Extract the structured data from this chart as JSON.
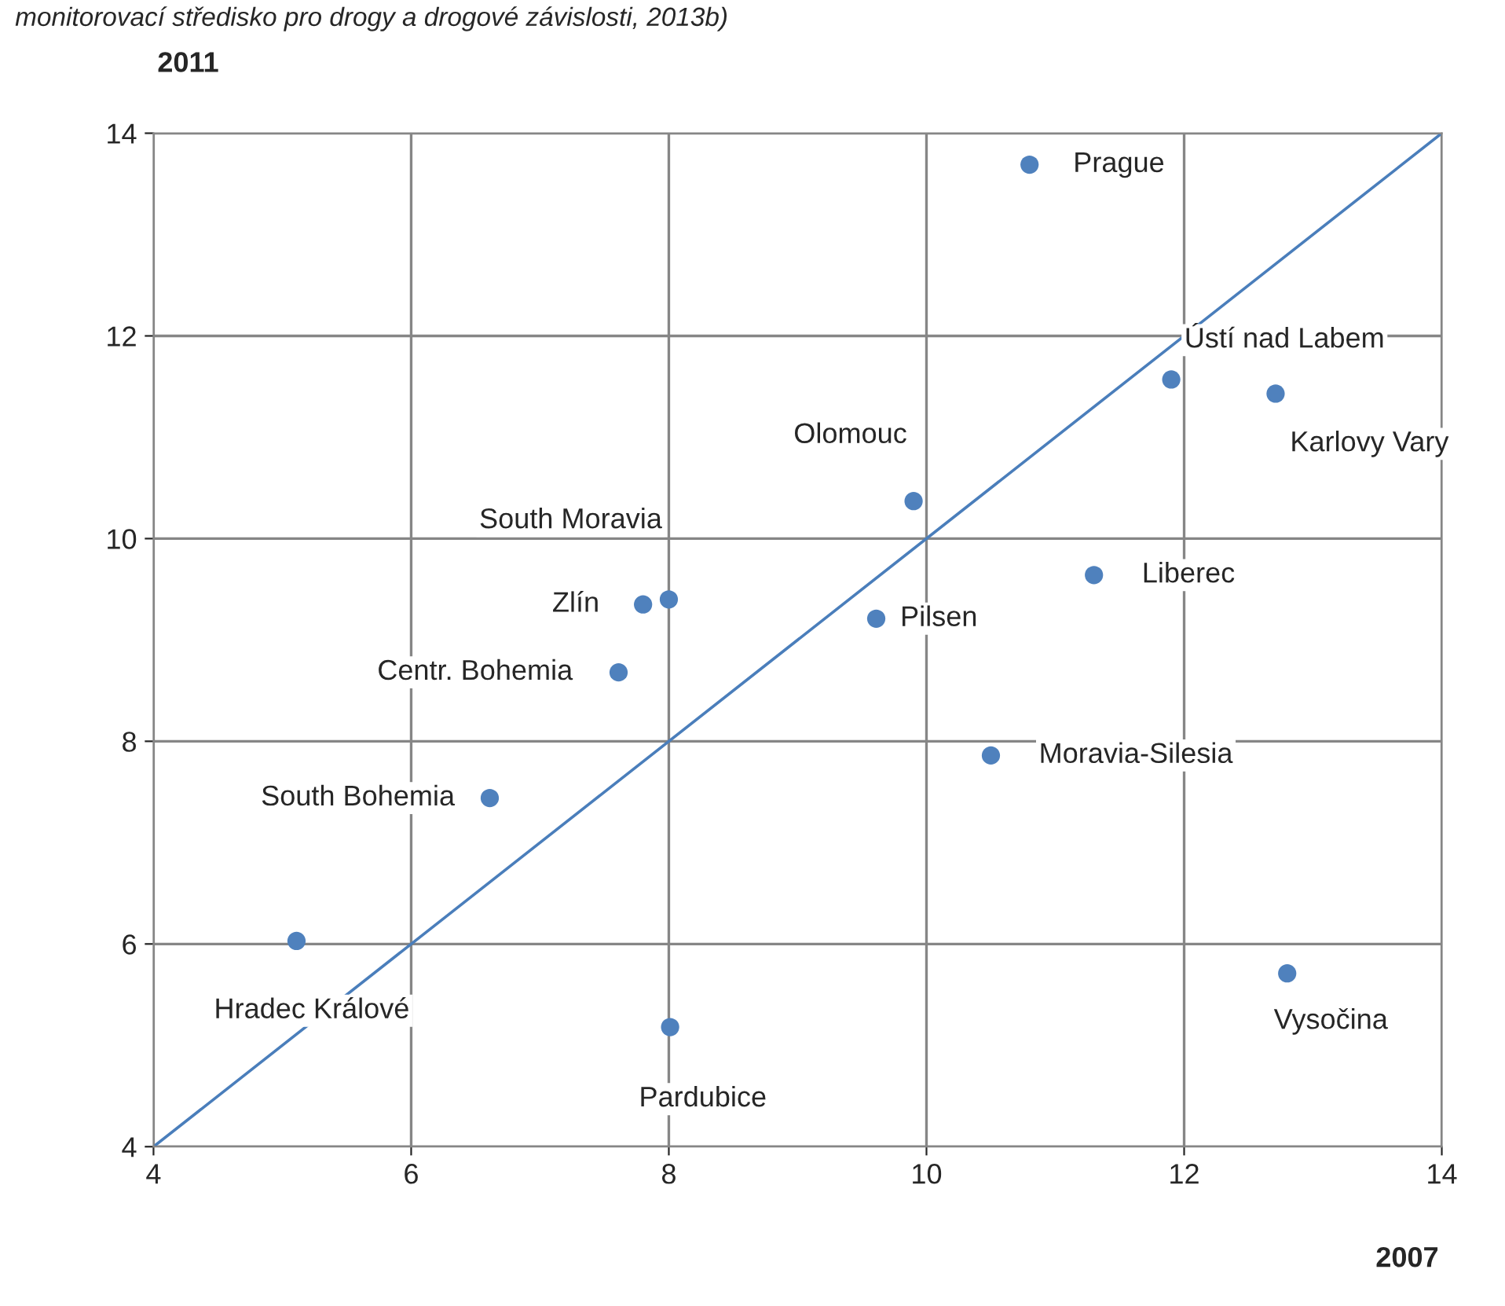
{
  "chart_data": {
    "type": "scatter",
    "xlabel": "2007",
    "ylabel": "2011",
    "annotations": [
      "monitorovací středisko pro drogy a drogové závislosti, 2013b)",
      {
        "text": "Prague",
        "x": 10.8,
        "y": 13.69
      },
      {
        "text": "Ústí nad Labem",
        "x": 11.9,
        "y": 11.57
      },
      {
        "text": "Karlovy Vary",
        "x": 12.71,
        "y": 11.43
      },
      {
        "text": "Olomouc",
        "x": 9.9,
        "y": 10.37
      },
      {
        "text": "Liberec",
        "x": 11.3,
        "y": 9.64
      },
      {
        "text": "Zlín",
        "x": 7.8,
        "y": 9.35
      },
      {
        "text": "South Moravia",
        "x": 8.0,
        "y": 9.4
      },
      {
        "text": "Pilsen",
        "x": 9.61,
        "y": 9.21
      },
      {
        "text": "Centr. Bohemia",
        "x": 7.61,
        "y": 8.68
      },
      {
        "text": "Moravia-Silesia",
        "x": 10.5,
        "y": 7.86
      },
      {
        "text": "South Bohemia",
        "x": 6.61,
        "y": 7.44
      },
      {
        "text": "Hradec Králové",
        "x": 5.11,
        "y": 6.03
      },
      {
        "text": "Pardubice",
        "x": 8.01,
        "y": 5.18
      },
      {
        "text": "Vysočina",
        "x": 12.8,
        "y": 5.71
      }
    ],
    "series": [
      {
        "color": "#4f81bd",
        "marker": "circle",
        "x": [
          10.8,
          11.9,
          12.71,
          9.9,
          11.3,
          7.8,
          8.0,
          9.61,
          7.61,
          10.5,
          6.61,
          5.11,
          8.01,
          12.8
        ],
        "values": [
          13.69,
          11.57,
          11.43,
          10.37,
          9.64,
          9.35,
          9.4,
          9.21,
          8.68,
          7.86,
          7.44,
          6.03,
          5.18,
          5.71
        ]
      },
      {
        "type": "line",
        "color": "#4a7ebb",
        "marker": "none",
        "x": [
          4,
          14
        ],
        "values": [
          4,
          14
        ]
      }
    ],
    "xlim": [
      4,
      14
    ],
    "ylim": [
      4,
      14
    ],
    "xticks": [
      4,
      6,
      8,
      10,
      12,
      14
    ],
    "yticks": [
      4,
      6,
      8,
      10,
      12,
      14
    ],
    "grid": true,
    "legend": false
  }
}
